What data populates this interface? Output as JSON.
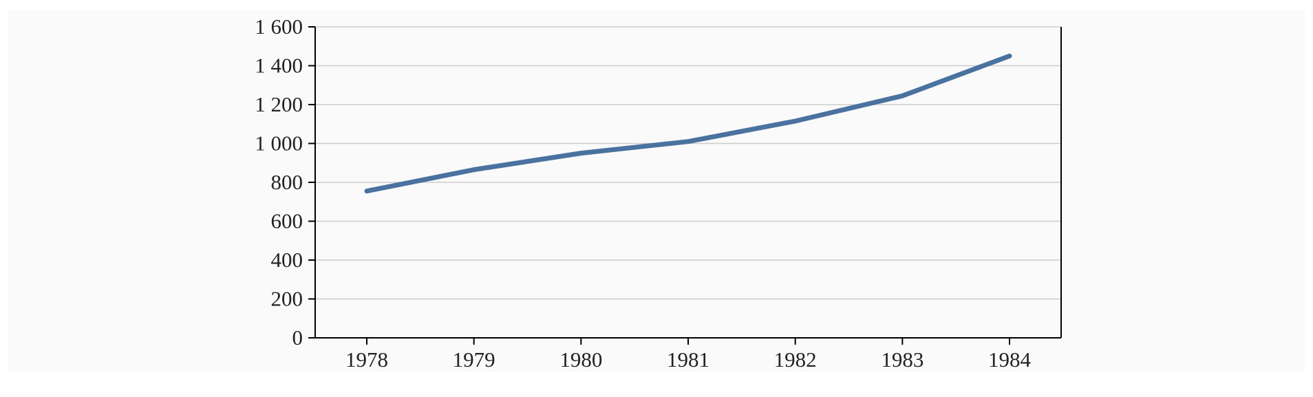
{
  "chart_data": {
    "type": "line",
    "title": "",
    "xlabel": "",
    "ylabel": "",
    "categories": [
      "1978",
      "1979",
      "1980",
      "1981",
      "1982",
      "1983",
      "1984"
    ],
    "series": [
      {
        "values": [
          755,
          865,
          950,
          1010,
          1115,
          1245,
          1450
        ],
        "color": "#4a72a0"
      }
    ],
    "ylim": [
      0,
      1600
    ],
    "yticks": [
      0,
      200,
      400,
      600,
      800,
      1000,
      1200,
      1400,
      1600
    ],
    "ytick_labels": [
      "0",
      "200",
      "400",
      "600",
      "800",
      "1 000",
      "1 200",
      "1 400",
      "1 600"
    ],
    "grid": "horizontal",
    "legend": "none",
    "colors": {
      "grid": "#cccccc",
      "axis": "#000000",
      "background": "#fafafa"
    }
  }
}
